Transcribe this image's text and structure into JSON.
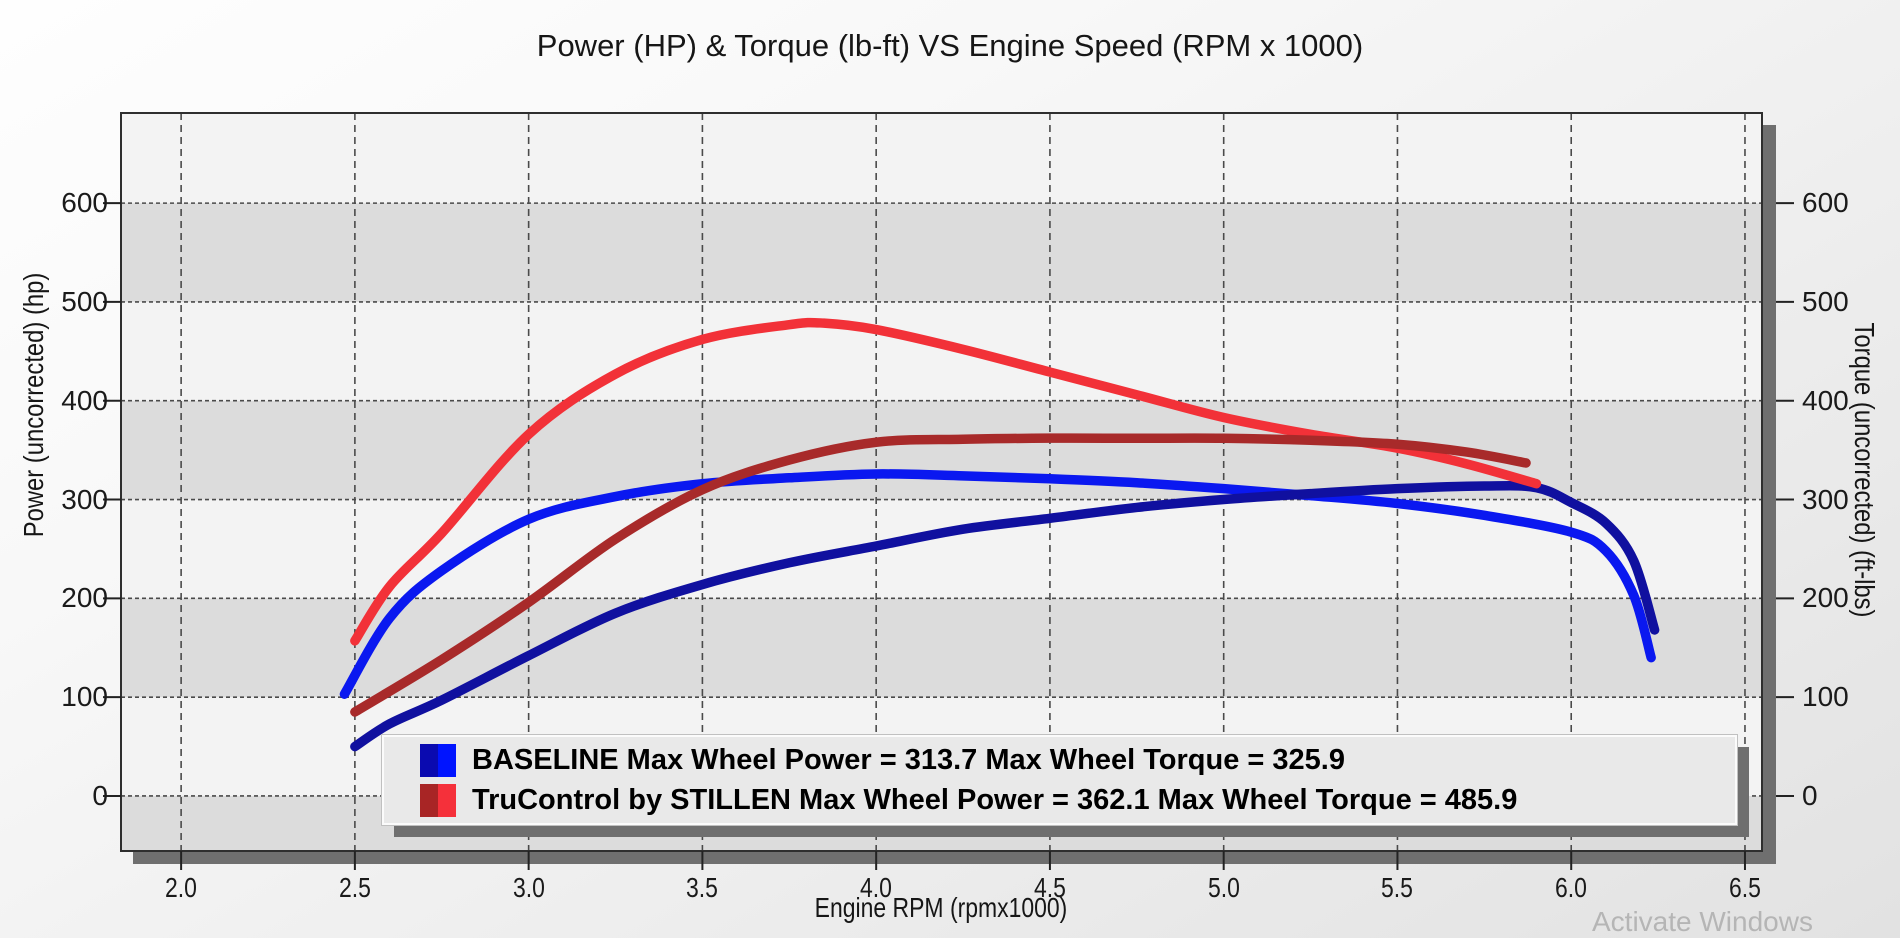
{
  "title": "Power (HP) & Torque (lb-ft) VS Engine Speed (RPM x 1000)",
  "axes": {
    "left_label": "Power (uncorrected) (hp)",
    "right_label": "Torque (uncorrected) (ft-lbs)",
    "x_label": "Engine RPM (rpmx1000)"
  },
  "legend": {
    "items": [
      {
        "label": "BASELINE Max Wheel Power = 313.7 Max Wheel Torque = 325.9",
        "name": "BASELINE",
        "max_wheel_power": 313.7,
        "max_wheel_torque": 325.9,
        "swatch_dark": "#0a0ab0",
        "swatch_bright": "#0014ff"
      },
      {
        "label": "TruControl by STILLEN Max Wheel Power = 362.1 Max Wheel Torque = 485.9",
        "name": "TruControl by STILLEN",
        "max_wheel_power": 362.1,
        "max_wheel_torque": 485.9,
        "swatch_dark": "#a82525",
        "swatch_bright": "#f5303a"
      }
    ]
  },
  "watermark": {
    "text": "Activate Windows",
    "color": "#b5b5b5"
  },
  "colors": {
    "band_light": "#f3f3f3",
    "band_dark": "#dcdcdc",
    "gridline": "#4a4a4a",
    "frame": "#2e2e2e",
    "shadow": "#6f6f6f",
    "tick": "#222222"
  },
  "chart_data": {
    "type": "line",
    "title": "Power (HP) & Torque (lb-ft) VS Engine Speed (RPM x 1000)",
    "xlabel": "Engine RPM (rpmx1000)",
    "ylabel_left": "Power (uncorrected) (hp)",
    "ylabel_right": "Torque (uncorrected) (ft-lbs)",
    "xlim": [
      1.827,
      6.549
    ],
    "ylim": [
      -55.7,
      691.2
    ],
    "grid": true,
    "x_tick_values": [
      2.0,
      2.5,
      3.0,
      3.5,
      4.0,
      4.5,
      5.0,
      5.5,
      6.0,
      6.5
    ],
    "x_tick_labels": [
      "2.0",
      "2.5",
      "3.0",
      "3.5",
      "4.0",
      "4.5",
      "5.0",
      "5.5",
      "6.0",
      "6.5"
    ],
    "y_tick_values": [
      0,
      100,
      200,
      300,
      400,
      500,
      600
    ],
    "y_tick_labels": [
      "0",
      "100",
      "200",
      "300",
      "400",
      "500",
      "600"
    ],
    "series": [
      {
        "name": "BASELINE wheel torque (ft-lbs)",
        "color": "#0a18f0",
        "max": 325.9,
        "x": [
          2.47,
          2.6,
          2.75,
          3.0,
          3.25,
          3.5,
          3.75,
          4.0,
          4.25,
          4.5,
          4.75,
          5.0,
          5.25,
          5.5,
          5.75,
          6.0,
          6.1,
          6.18,
          6.23
        ],
        "y": [
          103,
          180,
          228,
          280,
          303,
          316,
          322,
          325.9,
          324,
          321,
          317,
          311,
          304,
          296,
          284,
          267,
          248,
          203,
          140
        ]
      },
      {
        "name": "BASELINE wheel power (hp)",
        "color": "#10109f",
        "max": 313.7,
        "x": [
          2.5,
          2.6,
          2.75,
          3.0,
          3.25,
          3.5,
          3.75,
          4.0,
          4.25,
          4.5,
          4.75,
          5.0,
          5.25,
          5.5,
          5.75,
          5.9,
          6.0,
          6.1,
          6.18,
          6.24
        ],
        "y": [
          50,
          73,
          97,
          142,
          185,
          214,
          236,
          253,
          270,
          281,
          292,
          300,
          306,
          311,
          313.7,
          312,
          297,
          276,
          238,
          168
        ]
      },
      {
        "name": "TruControl by STILLEN wheel torque (ft-lbs)",
        "color": "#f23138",
        "max": 485.9,
        "x": [
          2.5,
          2.6,
          2.75,
          3.0,
          3.25,
          3.5,
          3.75,
          3.85,
          4.0,
          4.25,
          4.5,
          4.75,
          5.0,
          5.25,
          5.5,
          5.7,
          5.9
        ],
        "y": [
          157,
          212,
          266,
          366,
          427,
          462,
          477,
          478.5,
          472,
          452,
          429,
          406,
          383,
          366,
          352,
          336,
          316
        ]
      },
      {
        "name": "TruControl by STILLEN wheel power (hp)",
        "color": "#a82a2a",
        "max": 362.1,
        "x": [
          2.5,
          2.75,
          3.0,
          3.25,
          3.5,
          3.75,
          4.0,
          4.25,
          4.5,
          4.75,
          5.0,
          5.25,
          5.5,
          5.7,
          5.87
        ],
        "y": [
          85,
          138,
          196,
          260,
          310,
          340,
          358,
          361,
          362.1,
          362,
          362,
          360,
          356,
          348,
          337
        ]
      }
    ]
  }
}
